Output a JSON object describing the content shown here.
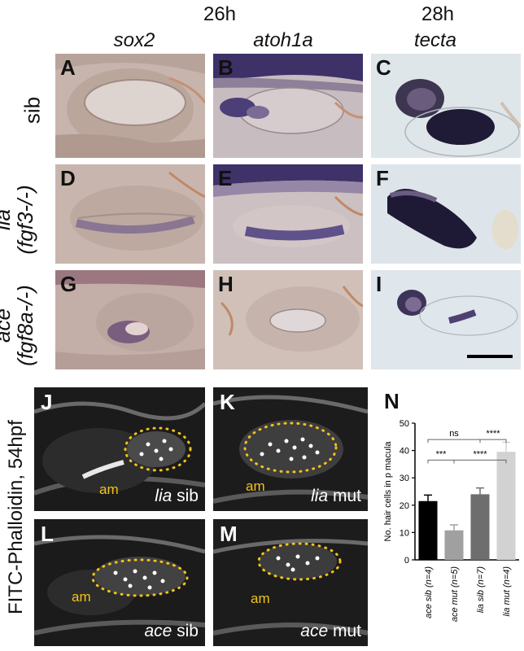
{
  "headers": {
    "time_a": "26h",
    "time_b": "28h",
    "gene_1": "sox2",
    "gene_2": "atoh1a",
    "gene_3": "tecta"
  },
  "rows": [
    {
      "line1": "sib",
      "line2": ""
    },
    {
      "line1": "lia",
      "line2": "(fgf3-/-)"
    },
    {
      "line1": "ace",
      "line2": "(fgf8a-/-)"
    }
  ],
  "ish_panels": [
    "A",
    "B",
    "C",
    "D",
    "E",
    "F",
    "G",
    "H",
    "I"
  ],
  "stain_label": "FITC-Phalloidin, 54hpf",
  "fluor_panels": [
    {
      "letter": "J",
      "genotype": "lia",
      "status": "sib",
      "am": "am"
    },
    {
      "letter": "K",
      "genotype": "lia",
      "status": "mut",
      "am": "am"
    },
    {
      "letter": "L",
      "genotype": "ace",
      "status": "sib",
      "am": "am"
    },
    {
      "letter": "M",
      "genotype": "ace",
      "status": "mut",
      "am": "am"
    }
  ],
  "chart_data": {
    "type": "bar",
    "panel_letter": "N",
    "ylabel": "No. hair cells in p macula",
    "ylim": [
      0,
      50
    ],
    "yticks": [
      "0",
      "10",
      "20",
      "30",
      "40",
      "50"
    ],
    "categories": [
      "ace sib (n=4)",
      "ace mut (n=5)",
      "lia sib (n=7)",
      "lia mut (n=4)"
    ],
    "values": [
      21.5,
      10.8,
      24,
      39.5
    ],
    "errors": [
      2.2,
      2,
      2.3,
      3.5
    ],
    "colors": [
      "#000000",
      "#a0a0a0",
      "#6e6e6e",
      "#d2d2d2"
    ],
    "significance": [
      {
        "from": 0,
        "to": 2,
        "label": "ns",
        "level": 44
      },
      {
        "from": 2,
        "to": 3,
        "label": "****",
        "level": 44
      },
      {
        "from": 0,
        "to": 1,
        "label": "***",
        "level": 36.5
      },
      {
        "from": 1,
        "to": 3,
        "label": "****",
        "level": 36.5
      }
    ]
  }
}
